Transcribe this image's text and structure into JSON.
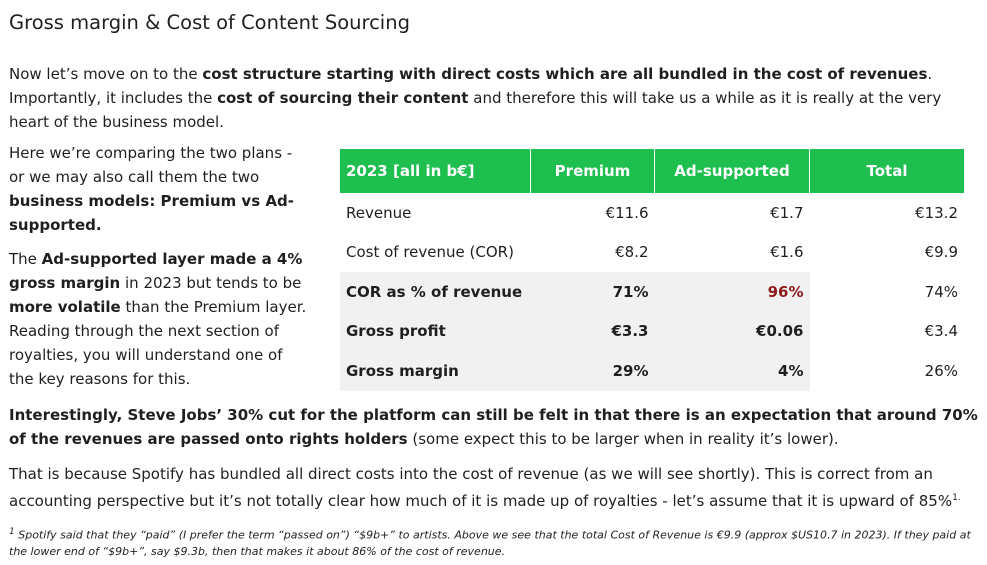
{
  "title": "Gross margin & Cost of Content Sourcing",
  "intro": {
    "t1": "Now let’s move on to the ",
    "b1": "cost structure starting with direct costs which are all bundled in the cost of revenues",
    "t2": ". Importantly, it includes the ",
    "b2": "cost of sourcing their content",
    "t3": " and therefore this will take us a while as it is really at the very heart of the business model."
  },
  "left": {
    "p1_t1": "Here we’re comparing the two plans - or we may also call them the two ",
    "p1_b1": "business models: Premium vs Ad-supported.",
    "p2_t1": "The ",
    "p2_b1": "Ad-supported layer made a 4% gross margin",
    "p2_t2": " in 2023 but tends to be ",
    "p2_b2": "more volatile",
    "p2_t3": " than the Premium layer. Reading through the next section of royalties, you will understand one of the key reasons for this."
  },
  "table": {
    "headers": [
      "2023 [all in b€]",
      "Premium",
      "Ad-supported",
      "Total"
    ],
    "rows": [
      {
        "label": "Revenue",
        "premium": "€11.6",
        "ad": "€1.7",
        "total": "€13.2"
      },
      {
        "label": "Cost of revenue (COR)",
        "premium": "€8.2",
        "ad": "€1.6",
        "total": "€9.9"
      },
      {
        "label": "COR as % of revenue",
        "premium": "71%",
        "ad": "96%",
        "total": "74%"
      },
      {
        "label": "Gross profit",
        "premium": "€3.3",
        "ad": "€0.06",
        "total": "€3.4"
      },
      {
        "label": "Gross margin",
        "premium": "29%",
        "ad": "4%",
        "total": "26%"
      }
    ],
    "header_color": "#1ebf4f",
    "highlight_color": "#8b1a1a"
  },
  "para3": {
    "b1": "Interestingly, Steve Jobs’ 30% cut for the platform can still be felt in that there is an expectation that around 70% of the revenues are passed onto rights holders",
    "t1": " (some expect this to be larger when in reality it’s lower)."
  },
  "para4": {
    "t1": "That is because Spotify has bundled all direct costs into the cost of revenue (as we will see shortly). This is correct from an accounting perspective but it’s not totally clear how much of it is made up of royalties - let’s assume that it is upward of 85%",
    "sup": "1."
  },
  "footnote": {
    "num": "1",
    "text": "  Spotify said that they “paid” (I prefer the term “passed on”) “$9b+” to artists. Above we see that the total Cost of Revenue is €9.9 (approx $US10.7 in 2023). If they paid at the lower end of “$9b+”, say $9.3b, then that makes it about 86% of the cost of revenue."
  }
}
